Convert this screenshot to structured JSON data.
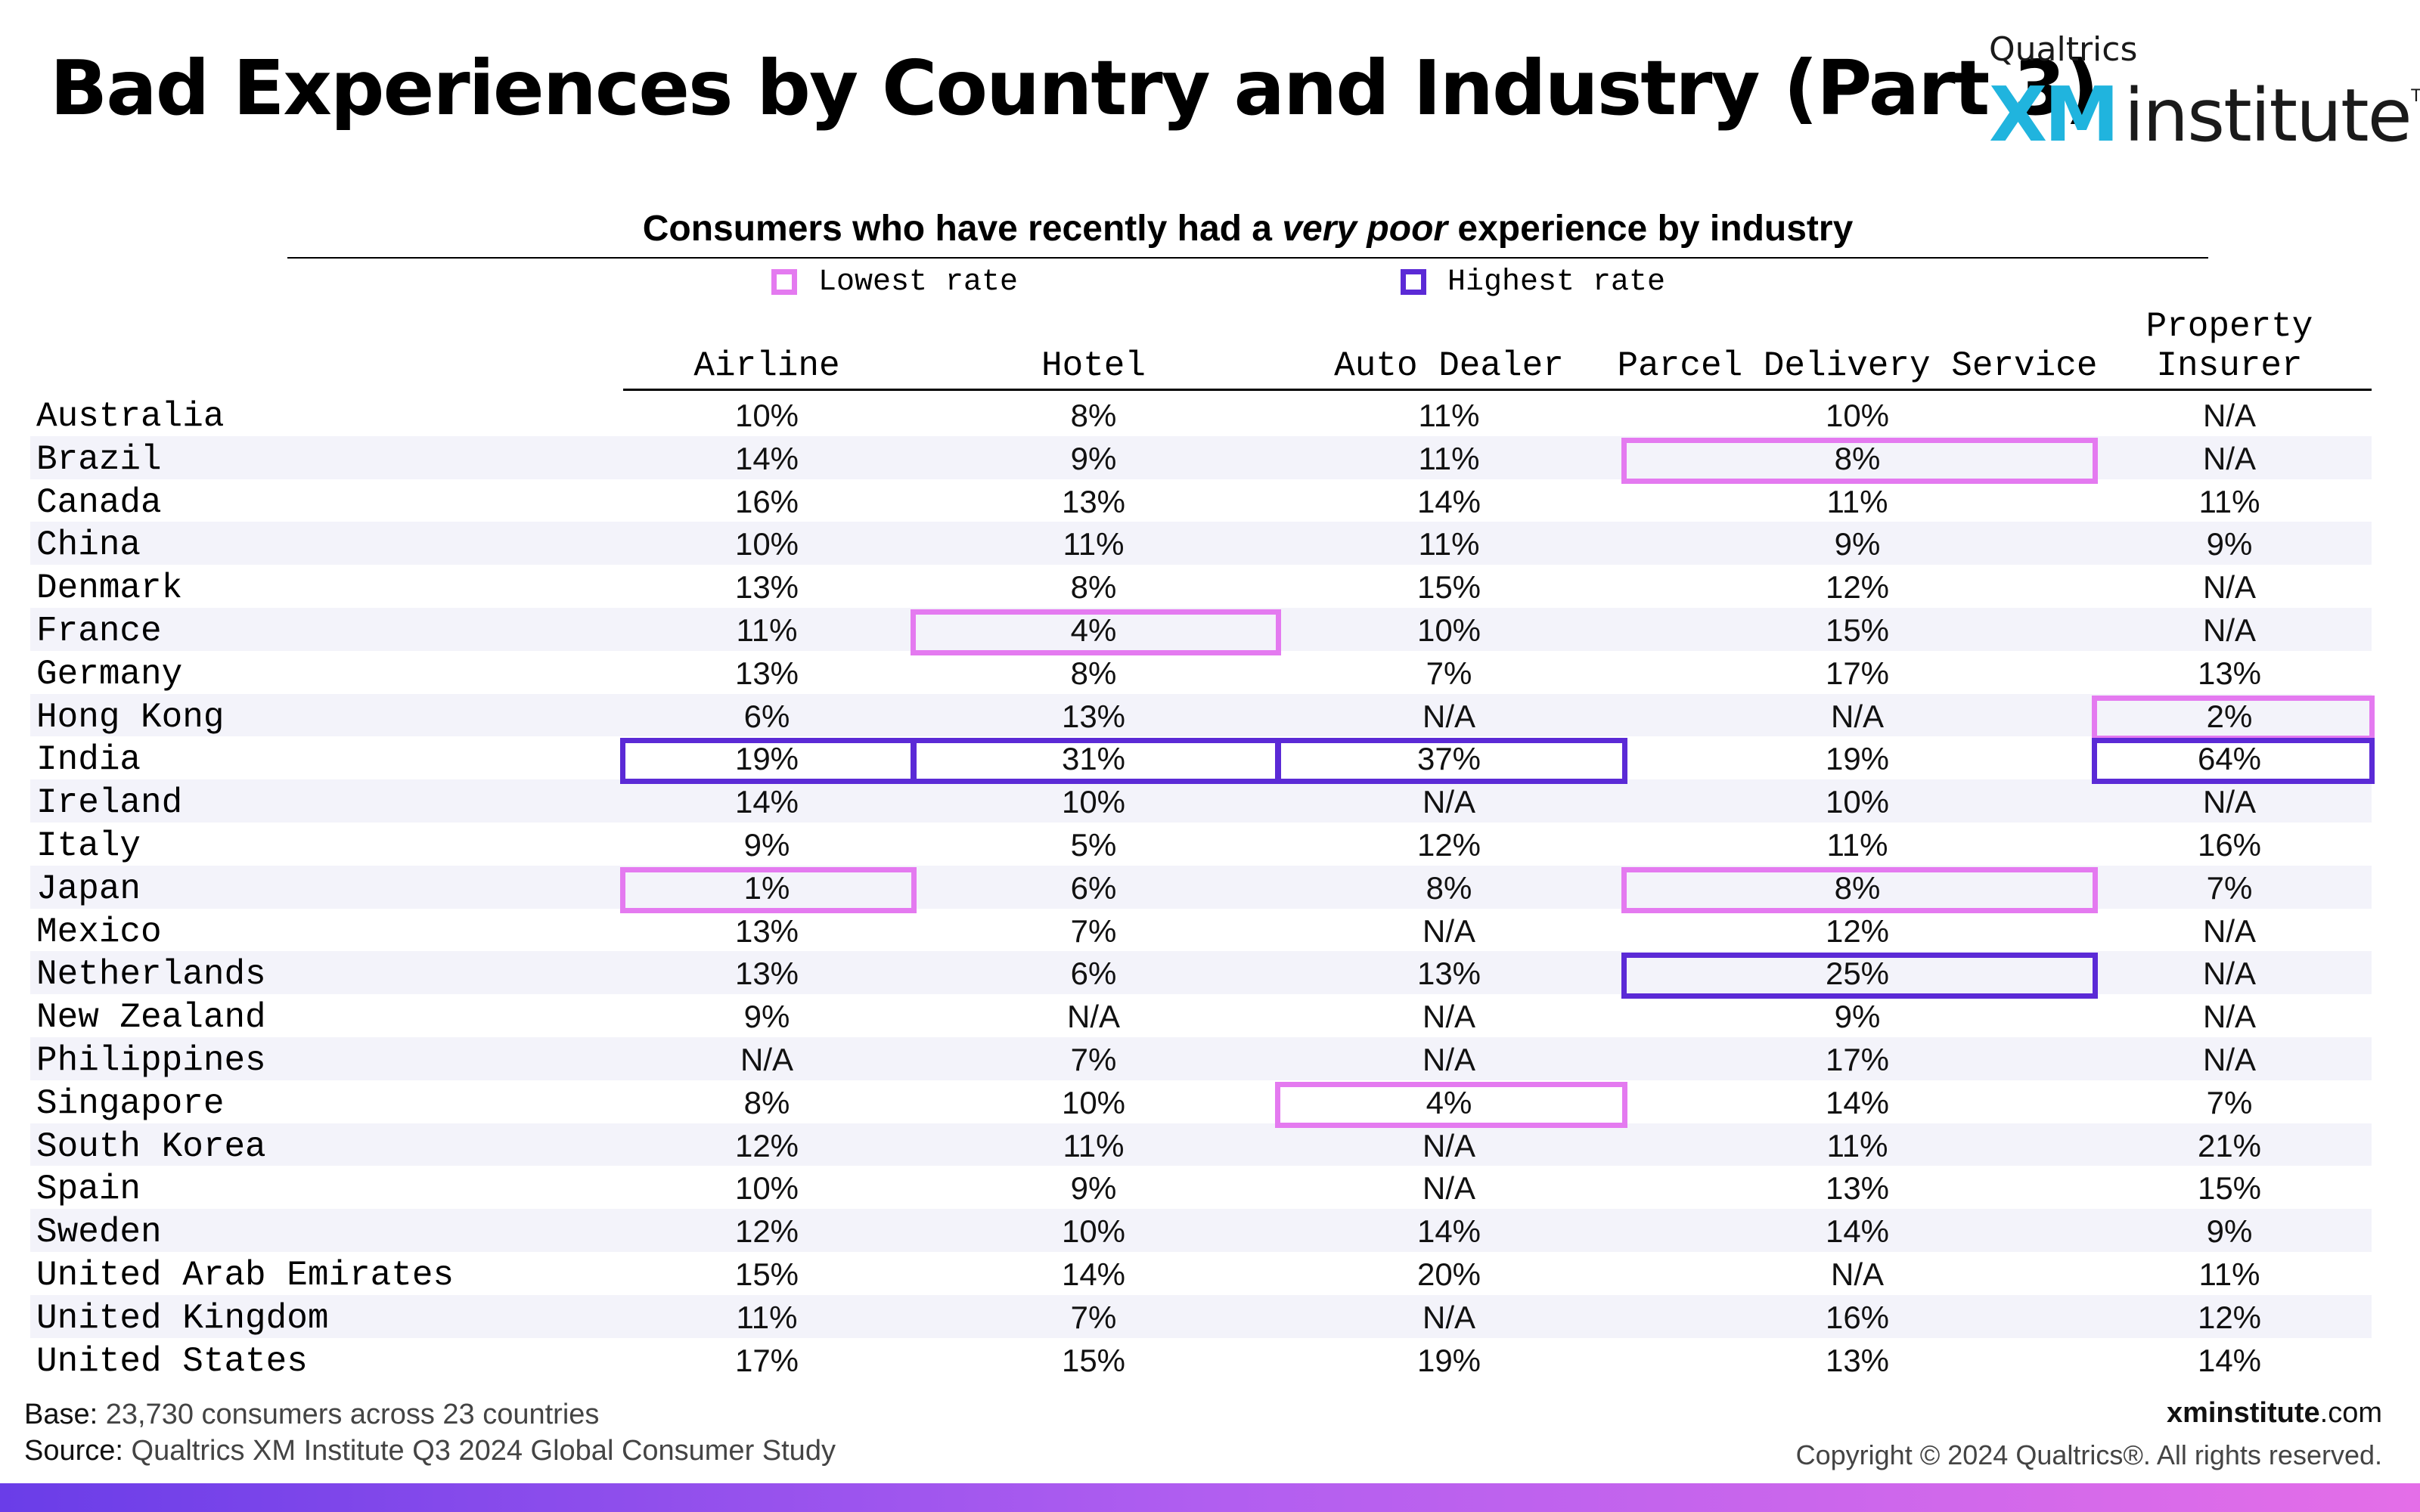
{
  "header": {
    "title": "Bad Experiences by Country and Industry (Part 3)",
    "logo": {
      "brand": "Qualtrics",
      "xm": "XM",
      "institute": "institute",
      "tm": "TM"
    }
  },
  "chart_data": {
    "type": "table",
    "title_before": "Consumers who have recently had a ",
    "title_emph": "very poor",
    "title_after": " experience by industry",
    "legend": [
      {
        "label": "Lowest rate",
        "color": "#e47af0"
      },
      {
        "label": "Highest rate",
        "color": "#5b2ad6"
      }
    ],
    "columns": [
      {
        "lines": [
          "Airline"
        ]
      },
      {
        "lines": [
          "Hotel"
        ]
      },
      {
        "lines": [
          "Auto Dealer"
        ]
      },
      {
        "lines": [
          "Parcel Delivery Service"
        ]
      },
      {
        "lines": [
          "Property",
          "Insurer"
        ]
      }
    ],
    "rows": [
      {
        "country": "Australia",
        "values": [
          "10%",
          "8%",
          "11%",
          "10%",
          "N/A"
        ]
      },
      {
        "country": "Brazil",
        "values": [
          "14%",
          "9%",
          "11%",
          "8%",
          "N/A"
        ]
      },
      {
        "country": "Canada",
        "values": [
          "16%",
          "13%",
          "14%",
          "11%",
          "11%"
        ]
      },
      {
        "country": "China",
        "values": [
          "10%",
          "11%",
          "11%",
          "9%",
          "9%"
        ]
      },
      {
        "country": "Denmark",
        "values": [
          "13%",
          "8%",
          "15%",
          "12%",
          "N/A"
        ]
      },
      {
        "country": "France",
        "values": [
          "11%",
          "4%",
          "10%",
          "15%",
          "N/A"
        ]
      },
      {
        "country": "Germany",
        "values": [
          "13%",
          "8%",
          "7%",
          "17%",
          "13%"
        ]
      },
      {
        "country": "Hong Kong",
        "values": [
          "6%",
          "13%",
          "N/A",
          "N/A",
          "2%"
        ]
      },
      {
        "country": "India",
        "values": [
          "19%",
          "31%",
          "37%",
          "19%",
          "64%"
        ]
      },
      {
        "country": "Ireland",
        "values": [
          "14%",
          "10%",
          "N/A",
          "10%",
          "N/A"
        ]
      },
      {
        "country": "Italy",
        "values": [
          "9%",
          "5%",
          "12%",
          "11%",
          "16%"
        ]
      },
      {
        "country": "Japan",
        "values": [
          "1%",
          "6%",
          "8%",
          "8%",
          "7%"
        ]
      },
      {
        "country": "Mexico",
        "values": [
          "13%",
          "7%",
          "N/A",
          "12%",
          "N/A"
        ]
      },
      {
        "country": "Netherlands",
        "values": [
          "13%",
          "6%",
          "13%",
          "25%",
          "N/A"
        ]
      },
      {
        "country": "New Zealand",
        "values": [
          "9%",
          "N/A",
          "N/A",
          "9%",
          "N/A"
        ]
      },
      {
        "country": "Philippines",
        "values": [
          "N/A",
          "7%",
          "N/A",
          "17%",
          "N/A"
        ]
      },
      {
        "country": "Singapore",
        "values": [
          "8%",
          "10%",
          "4%",
          "14%",
          "7%"
        ]
      },
      {
        "country": "South Korea",
        "values": [
          "12%",
          "11%",
          "N/A",
          "11%",
          "21%"
        ]
      },
      {
        "country": "Spain",
        "values": [
          "10%",
          "9%",
          "N/A",
          "13%",
          "15%"
        ]
      },
      {
        "country": "Sweden",
        "values": [
          "12%",
          "10%",
          "14%",
          "14%",
          "9%"
        ]
      },
      {
        "country": "United Arab Emirates",
        "values": [
          "15%",
          "14%",
          "20%",
          "N/A",
          "11%"
        ]
      },
      {
        "country": "United Kingdom",
        "values": [
          "11%",
          "7%",
          "N/A",
          "16%",
          "12%"
        ]
      },
      {
        "country": "United States",
        "values": [
          "17%",
          "15%",
          "19%",
          "13%",
          "14%"
        ]
      }
    ],
    "highlights": [
      {
        "row": 1,
        "col": 3,
        "kind": "low"
      },
      {
        "row": 5,
        "col": 1,
        "kind": "low"
      },
      {
        "row": 7,
        "col": 4,
        "kind": "low"
      },
      {
        "row": 8,
        "col": 0,
        "kind": "high"
      },
      {
        "row": 8,
        "col": 1,
        "kind": "high"
      },
      {
        "row": 8,
        "col": 2,
        "kind": "high"
      },
      {
        "row": 8,
        "col": 4,
        "kind": "high"
      },
      {
        "row": 11,
        "col": 0,
        "kind": "low"
      },
      {
        "row": 11,
        "col": 3,
        "kind": "low"
      },
      {
        "row": 13,
        "col": 3,
        "kind": "high"
      },
      {
        "row": 16,
        "col": 2,
        "kind": "low"
      }
    ]
  },
  "footer": {
    "base_label": "Base:",
    "base_text": " 23,730 consumers across 23 countries",
    "source_label": "Source:",
    "source_text": " Qualtrics XM Institute Q3 2024 Global Consumer Study",
    "site_bold": "xminstitute",
    "site_rest": ".com",
    "copyright": "Copyright © 2024 Qualtrics®. All rights reserved."
  }
}
